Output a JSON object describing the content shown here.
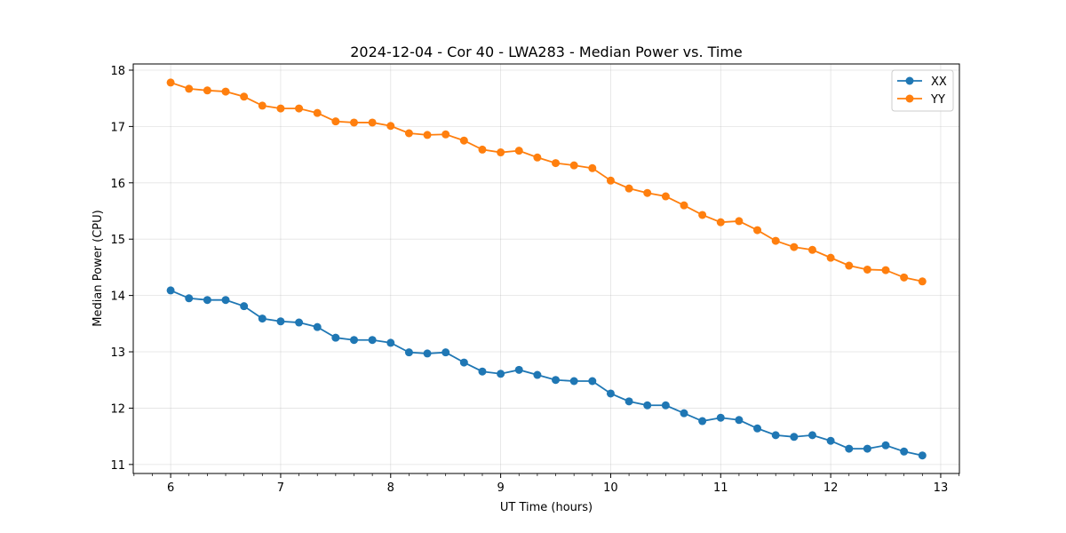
{
  "chart_data": {
    "type": "line",
    "title": "2024-12-04 - Cor 40 - LWA283 - Median Power vs. Time",
    "xlabel": "UT Time (hours)",
    "ylabel": "Median Power (CPU)",
    "xlim": [
      5.66,
      13.17
    ],
    "ylim": [
      10.84,
      18.11
    ],
    "xticks": [
      6,
      7,
      8,
      9,
      10,
      11,
      12,
      13
    ],
    "yticks": [
      11,
      12,
      13,
      14,
      15,
      16,
      17,
      18
    ],
    "grid": true,
    "legend_position": "top-right",
    "x": [
      6.0,
      6.1667,
      6.3333,
      6.5,
      6.6667,
      6.8333,
      7.0,
      7.1667,
      7.3333,
      7.5,
      7.6667,
      7.8333,
      8.0,
      8.1667,
      8.3333,
      8.5,
      8.6667,
      8.8333,
      9.0,
      9.1667,
      9.3333,
      9.5,
      9.6667,
      9.8333,
      10.0,
      10.1667,
      10.3333,
      10.5,
      10.6667,
      10.8333,
      11.0,
      11.1667,
      11.3333,
      11.5,
      11.6667,
      11.8333,
      12.0,
      12.1667,
      12.3333,
      12.5,
      12.6667,
      12.8333
    ],
    "series": [
      {
        "name": "XX",
        "color": "#1f77b4",
        "values": [
          14.09,
          13.95,
          13.92,
          13.92,
          13.81,
          13.59,
          13.54,
          13.52,
          13.44,
          13.25,
          13.21,
          13.21,
          13.16,
          12.99,
          12.97,
          12.99,
          12.81,
          12.65,
          12.61,
          12.68,
          12.59,
          12.5,
          12.48,
          12.48,
          12.26,
          12.12,
          12.05,
          12.05,
          11.91,
          11.77,
          11.83,
          11.79,
          11.64,
          11.52,
          11.49,
          11.52,
          11.42,
          11.28,
          11.28,
          11.34,
          11.23,
          11.16
        ]
      },
      {
        "name": "YY",
        "color": "#ff7f0e",
        "values": [
          17.78,
          17.67,
          17.64,
          17.62,
          17.53,
          17.37,
          17.32,
          17.32,
          17.24,
          17.09,
          17.07,
          17.07,
          17.01,
          16.88,
          16.85,
          16.86,
          16.75,
          16.59,
          16.54,
          16.57,
          16.45,
          16.35,
          16.31,
          16.26,
          16.04,
          15.9,
          15.82,
          15.76,
          15.6,
          15.43,
          15.3,
          15.32,
          15.16,
          14.97,
          14.86,
          14.81,
          14.67,
          14.53,
          14.46,
          14.45,
          14.32,
          14.25
        ]
      }
    ]
  }
}
